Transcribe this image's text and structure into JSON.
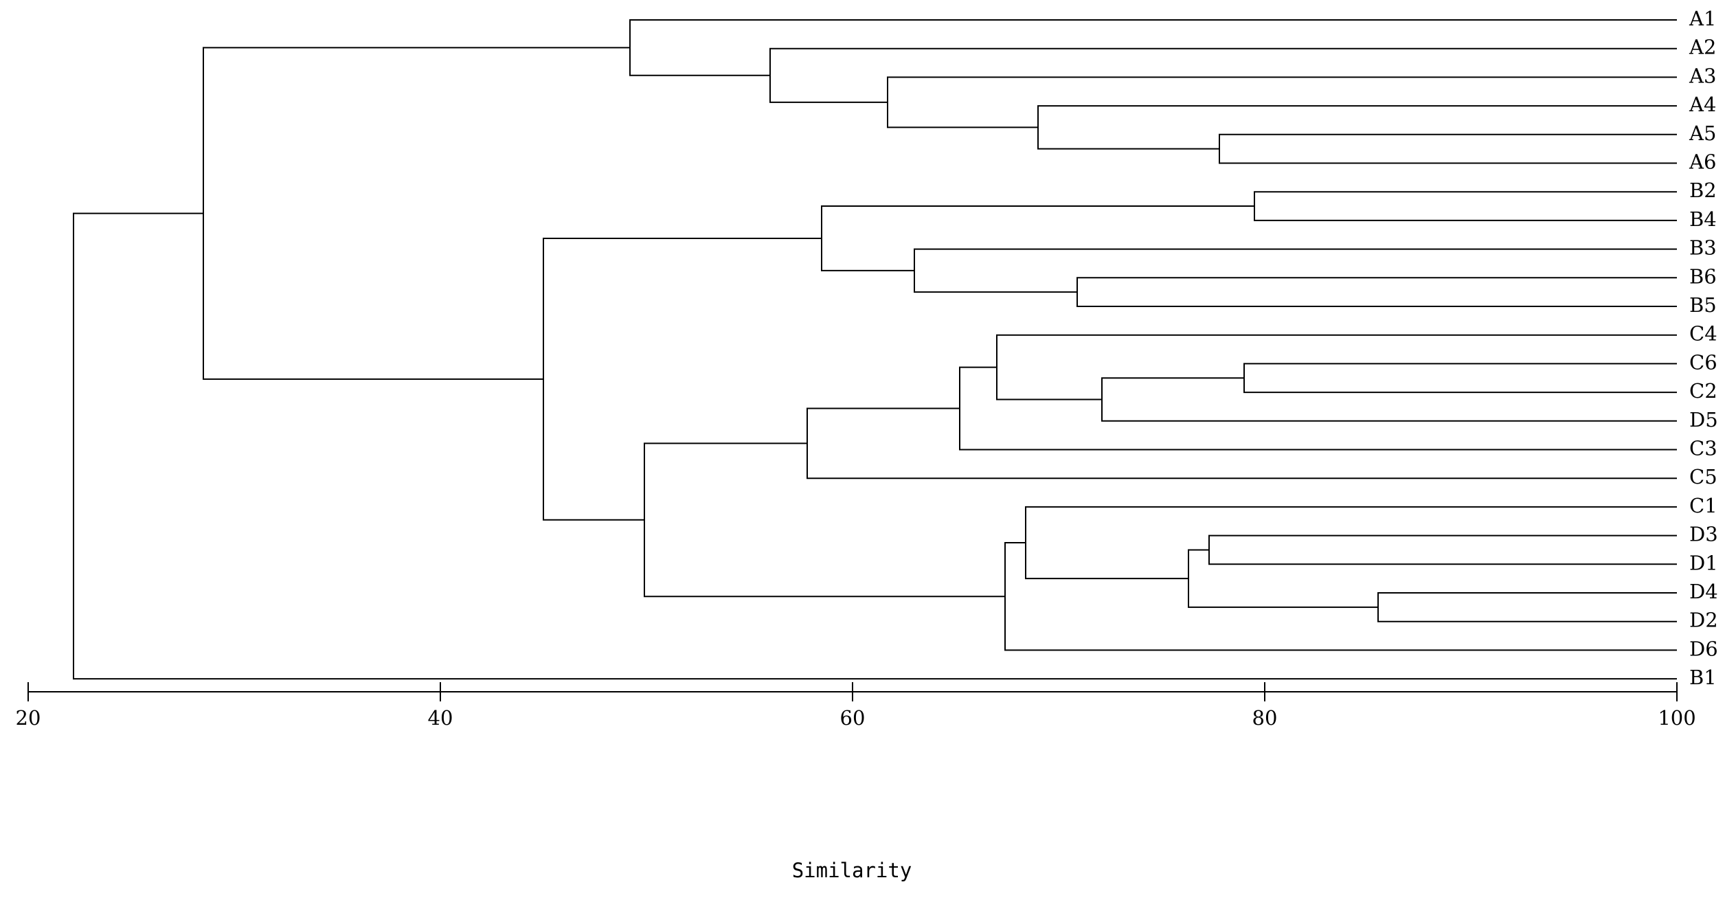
{
  "chart_data": {
    "type": "dendrogram",
    "xlabel": "Similarity",
    "xlim": [
      20,
      100
    ],
    "xticks": [
      20,
      40,
      60,
      80,
      100
    ],
    "leaves": [
      "A1",
      "A2",
      "A3",
      "A4",
      "A5",
      "A6",
      "B2",
      "B4",
      "B3",
      "B6",
      "B5",
      "C4",
      "C6",
      "C2",
      "D5",
      "C3",
      "C5",
      "C1",
      "D3",
      "D1",
      "D4",
      "D2",
      "D6",
      "B1"
    ],
    "merges": [
      {
        "id": "m1",
        "a": "A5",
        "b": "A6",
        "similarity": 77.8
      },
      {
        "id": "m2",
        "a": "A4",
        "b": "m1",
        "similarity": 69.0
      },
      {
        "id": "m3",
        "a": "A3",
        "b": "m2",
        "similarity": 61.7
      },
      {
        "id": "m4",
        "a": "A2",
        "b": "m3",
        "similarity": 56.0
      },
      {
        "id": "m5",
        "a": "A1",
        "b": "m4",
        "similarity": 49.2
      },
      {
        "id": "m6",
        "a": "B2",
        "b": "B4",
        "similarity": 79.5
      },
      {
        "id": "m7",
        "a": "B6",
        "b": "B5",
        "similarity": 70.9
      },
      {
        "id": "m8",
        "a": "B3",
        "b": "m7",
        "similarity": 63.0
      },
      {
        "id": "m9",
        "a": "m6",
        "b": "m8",
        "similarity": 58.5
      },
      {
        "id": "m10",
        "a": "C6",
        "b": "C2",
        "similarity": 79.0
      },
      {
        "id": "m11",
        "a": "m10",
        "b": "D5",
        "similarity": 72.1
      },
      {
        "id": "m12",
        "a": "C4",
        "b": "m11",
        "similarity": 67.0
      },
      {
        "id": "m13",
        "a": "m12",
        "b": "C3",
        "similarity": 65.2
      },
      {
        "id": "m14",
        "a": "m13",
        "b": "C5",
        "similarity": 57.8
      },
      {
        "id": "m15",
        "a": "D3",
        "b": "D1",
        "similarity": 77.3
      },
      {
        "id": "m16",
        "a": "D4",
        "b": "D2",
        "similarity": 85.5
      },
      {
        "id": "m17",
        "a": "m15",
        "b": "m16",
        "similarity": 76.3
      },
      {
        "id": "m18",
        "a": "C1",
        "b": "m17",
        "similarity": 68.4
      },
      {
        "id": "m19",
        "a": "m18",
        "b": "D6",
        "similarity": 67.4
      },
      {
        "id": "m20",
        "a": "m14",
        "b": "m19",
        "similarity": 49.9
      },
      {
        "id": "m21",
        "a": "m9",
        "b": "m20",
        "similarity": 45.0
      },
      {
        "id": "m22",
        "a": "m5",
        "b": "m21",
        "similarity": 28.5
      },
      {
        "id": "m23",
        "a": "m22",
        "b": "B1",
        "similarity": 22.2
      }
    ]
  }
}
